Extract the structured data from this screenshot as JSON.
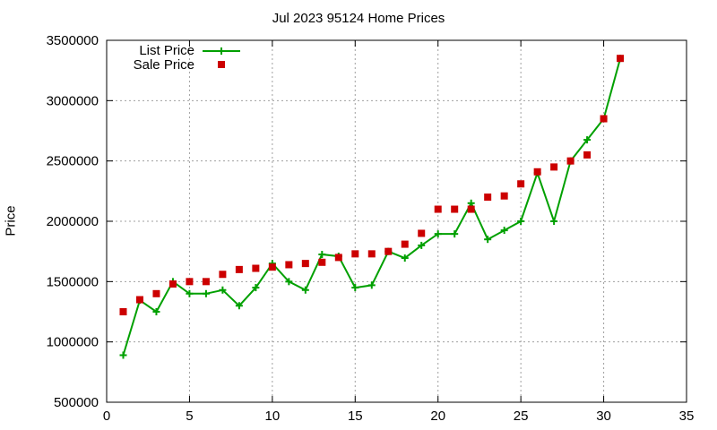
{
  "chart_data": {
    "type": "line",
    "title": "Jul 2023 95124 Home Prices",
    "xlabel": "",
    "ylabel": "Price",
    "xlim": [
      0,
      35
    ],
    "ylim": [
      500000,
      3500000
    ],
    "xticks": [
      "0",
      "5",
      "10",
      "15",
      "20",
      "25",
      "30",
      "35"
    ],
    "yticks": [
      "500000",
      "1000000",
      "1500000",
      "2000000",
      "2500000",
      "3000000",
      "3500000"
    ],
    "grid": true,
    "legend": "top-left",
    "series": [
      {
        "name": "List Price",
        "style": "line-with-plus-markers",
        "color": "#00a000",
        "x": [
          1,
          2,
          3,
          4,
          5,
          6,
          7,
          8,
          9,
          10,
          11,
          12,
          13,
          14,
          15,
          16,
          17,
          18,
          19,
          20,
          21,
          22,
          23,
          24,
          25,
          26,
          27,
          28,
          29,
          30,
          31
        ],
        "y": [
          890000,
          1345000,
          1250000,
          1500000,
          1400000,
          1400000,
          1430000,
          1300000,
          1450000,
          1650000,
          1500000,
          1430000,
          1725000,
          1710000,
          1450000,
          1470000,
          1750000,
          1695000,
          1800000,
          1895000,
          1895000,
          2150000,
          1850000,
          1925000,
          2000000,
          2400000,
          2000000,
          2500000,
          2675000,
          2850000,
          3350000
        ]
      },
      {
        "name": "Sale Price",
        "style": "square-markers",
        "color": "#cc0000",
        "x": [
          1,
          2,
          3,
          4,
          5,
          6,
          7,
          8,
          9,
          10,
          11,
          12,
          13,
          14,
          15,
          16,
          17,
          18,
          19,
          20,
          21,
          22,
          23,
          24,
          25,
          26,
          27,
          28,
          29,
          30,
          31
        ],
        "y": [
          1250000,
          1350000,
          1400000,
          1480000,
          1500000,
          1500000,
          1560000,
          1600000,
          1610000,
          1620000,
          1640000,
          1650000,
          1660000,
          1700000,
          1730000,
          1730000,
          1750000,
          1810000,
          1900000,
          2100000,
          2100000,
          2100000,
          2200000,
          2210000,
          2310000,
          2410000,
          2450000,
          2500000,
          2550000,
          2850000,
          3350000
        ]
      }
    ]
  }
}
